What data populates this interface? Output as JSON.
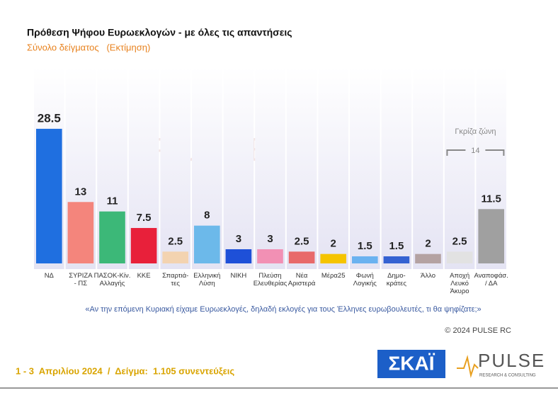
{
  "chart_data": {
    "type": "bar",
    "title": "Πρόθεση Ψήφου Ευρωεκλογών - με όλες τις απαντήσεις",
    "subtitle": "Σύνολο δείγματος   (Εκτίμηση)",
    "categories": [
      "ΝΔ",
      "ΣΥΡΙΖΑ\n- ΠΣ",
      "ΠΑΣΟΚ-Κίν.\nΑλλαγής",
      "ΚΚΕ",
      "Σπαρτιά-\nτες",
      "Ελληνική\nΛύση",
      "ΝΙΚΗ",
      "Πλεύση\nΕλευθερίας",
      "Νέα\nΑριστερά",
      "Μέρα25",
      "Φωνή\nΛογικής",
      "Δημο-\nκράτες",
      "Άλλο",
      "Αποχή\nΛευκό\nΆκυρο",
      "Αναποφάσ.\n/ ΔΑ"
    ],
    "values": [
      28.5,
      13,
      11,
      7.5,
      2.5,
      8,
      3,
      3,
      2.5,
      2,
      1.5,
      1.5,
      2,
      2.5,
      11.5
    ],
    "colors": [
      "#1f6fe0",
      "#f4857c",
      "#3cb878",
      "#e8203a",
      "#f3d3b0",
      "#6cb9ea",
      "#1e50d8",
      "#f290b4",
      "#e86a6a",
      "#f5c400",
      "#6ab2f0",
      "#3462d2",
      "#b4a2a2",
      "#e2e2e2",
      "#a0a0a0"
    ],
    "gray_zone": {
      "label": "Γκρίζα ζώνη",
      "value": 14
    },
    "question": "«Αν την επόμενη Κυριακή είχαμε Ευρωεκλογές, δηλαδή εκλογές για τους Έλληνες ευρωβουλευτές, τι θα ψηφίζατε;»",
    "copyright": "© 2024 PULSE RC",
    "footer": "1 - 3  Απριλίου 2024  /  Δείγμα:  1.105 συνεντεύξεις",
    "logo_skai": "ΣΚΑΪ",
    "logo_pulse": "PULSE",
    "logo_pulse_sub": "RESEARCH & CONSULTING"
  }
}
